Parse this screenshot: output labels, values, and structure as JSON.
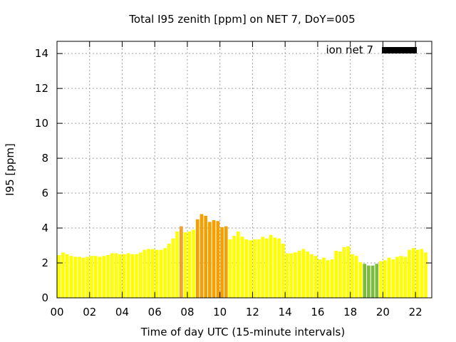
{
  "chart_data": {
    "type": "bar",
    "title": "Total I95 zenith [ppm] on NET 7, DoY=005",
    "xlabel": "Time of day UTC (15-minute intervals)",
    "ylabel": "I95 [ppm]",
    "xlim": [
      0,
      23
    ],
    "ylim": [
      0,
      14.7
    ],
    "x_ticks": [
      0,
      2,
      4,
      6,
      8,
      10,
      12,
      14,
      16,
      18,
      20,
      22
    ],
    "x_tick_labels": [
      "00",
      "02",
      "04",
      "06",
      "08",
      "10",
      "12",
      "14",
      "16",
      "18",
      "20",
      "22"
    ],
    "y_ticks": [
      0,
      2,
      4,
      6,
      8,
      10,
      12,
      14
    ],
    "y_tick_labels": [
      "0",
      "2",
      "4",
      "6",
      "8",
      "10",
      "12",
      "14"
    ],
    "grid": true,
    "legend": {
      "position": "top-right",
      "entries": [
        {
          "label": "ion net 7",
          "color": "#000000"
        }
      ]
    },
    "interval_hours": 0.25,
    "series": [
      {
        "values": [
          2.45,
          2.6,
          2.5,
          2.4,
          2.35,
          2.35,
          2.3,
          2.35,
          2.4,
          2.4,
          2.35,
          2.4,
          2.45,
          2.55,
          2.55,
          2.5,
          2.5,
          2.55,
          2.5,
          2.5,
          2.6,
          2.75,
          2.8,
          2.8,
          2.75,
          2.75,
          2.85,
          3.1,
          3.4,
          3.8,
          4.1,
          3.75,
          3.8,
          3.9,
          4.5,
          4.8,
          4.7,
          4.35,
          4.45,
          4.4,
          4.05,
          4.1,
          3.35,
          3.55,
          3.8,
          3.5,
          3.35,
          3.3,
          3.35,
          3.35,
          3.5,
          3.4,
          3.6,
          3.45,
          3.4,
          3.1,
          2.55,
          2.55,
          2.6,
          2.7,
          2.8,
          2.65,
          2.5,
          2.4,
          2.2,
          2.3,
          2.15,
          2.2,
          2.7,
          2.65,
          2.9,
          2.95,
          2.5,
          2.4,
          2.05,
          1.95,
          1.85,
          1.85,
          1.95,
          2.1,
          2.15,
          2.3,
          2.2,
          2.35,
          2.4,
          2.35,
          2.75,
          2.85,
          2.75,
          2.8,
          2.6
        ],
        "colors": [
          "#ffff00",
          "#ffff00",
          "#ffff00",
          "#ffff00",
          "#ffff00",
          "#ffff00",
          "#ffff00",
          "#ffff00",
          "#ffff00",
          "#ffff00",
          "#ffff00",
          "#ffff00",
          "#ffff00",
          "#ffff00",
          "#ffff00",
          "#ffff00",
          "#ffff00",
          "#ffff00",
          "#ffff00",
          "#ffff00",
          "#ffff00",
          "#ffff00",
          "#ffff00",
          "#ffff00",
          "#ffff00",
          "#ffff00",
          "#ffff00",
          "#ffff00",
          "#ffff00",
          "#ffff00",
          "#f0a030",
          "#ffff00",
          "#ffff00",
          "#ffff00",
          "#f5a000",
          "#f5a000",
          "#f5a000",
          "#f5a000",
          "#f5a000",
          "#f5a000",
          "#f5a000",
          "#f5a000",
          "#ffff00",
          "#ffff00",
          "#ffff00",
          "#ffff00",
          "#ffff00",
          "#ffff00",
          "#ffff00",
          "#ffff00",
          "#ffff00",
          "#ffff00",
          "#ffff00",
          "#ffff00",
          "#ffff00",
          "#ffff00",
          "#ffff00",
          "#ffff00",
          "#ffff00",
          "#ffff00",
          "#ffff00",
          "#ffff00",
          "#ffff00",
          "#ffff00",
          "#ffff00",
          "#ffff00",
          "#ffff00",
          "#ffff00",
          "#ffff00",
          "#ffff00",
          "#ffff00",
          "#ffff00",
          "#ffff00",
          "#ffff00",
          "#ffff00",
          "#7cbc3c",
          "#7cbc3c",
          "#7cbc3c",
          "#7cbc3c",
          "#ffff00",
          "#ffff00",
          "#ffff00",
          "#ffff00",
          "#ffff00",
          "#ffff00",
          "#ffff00",
          "#ffff00",
          "#ffff00",
          "#ffff00",
          "#ffff00",
          "#ffff00"
        ]
      }
    ]
  }
}
